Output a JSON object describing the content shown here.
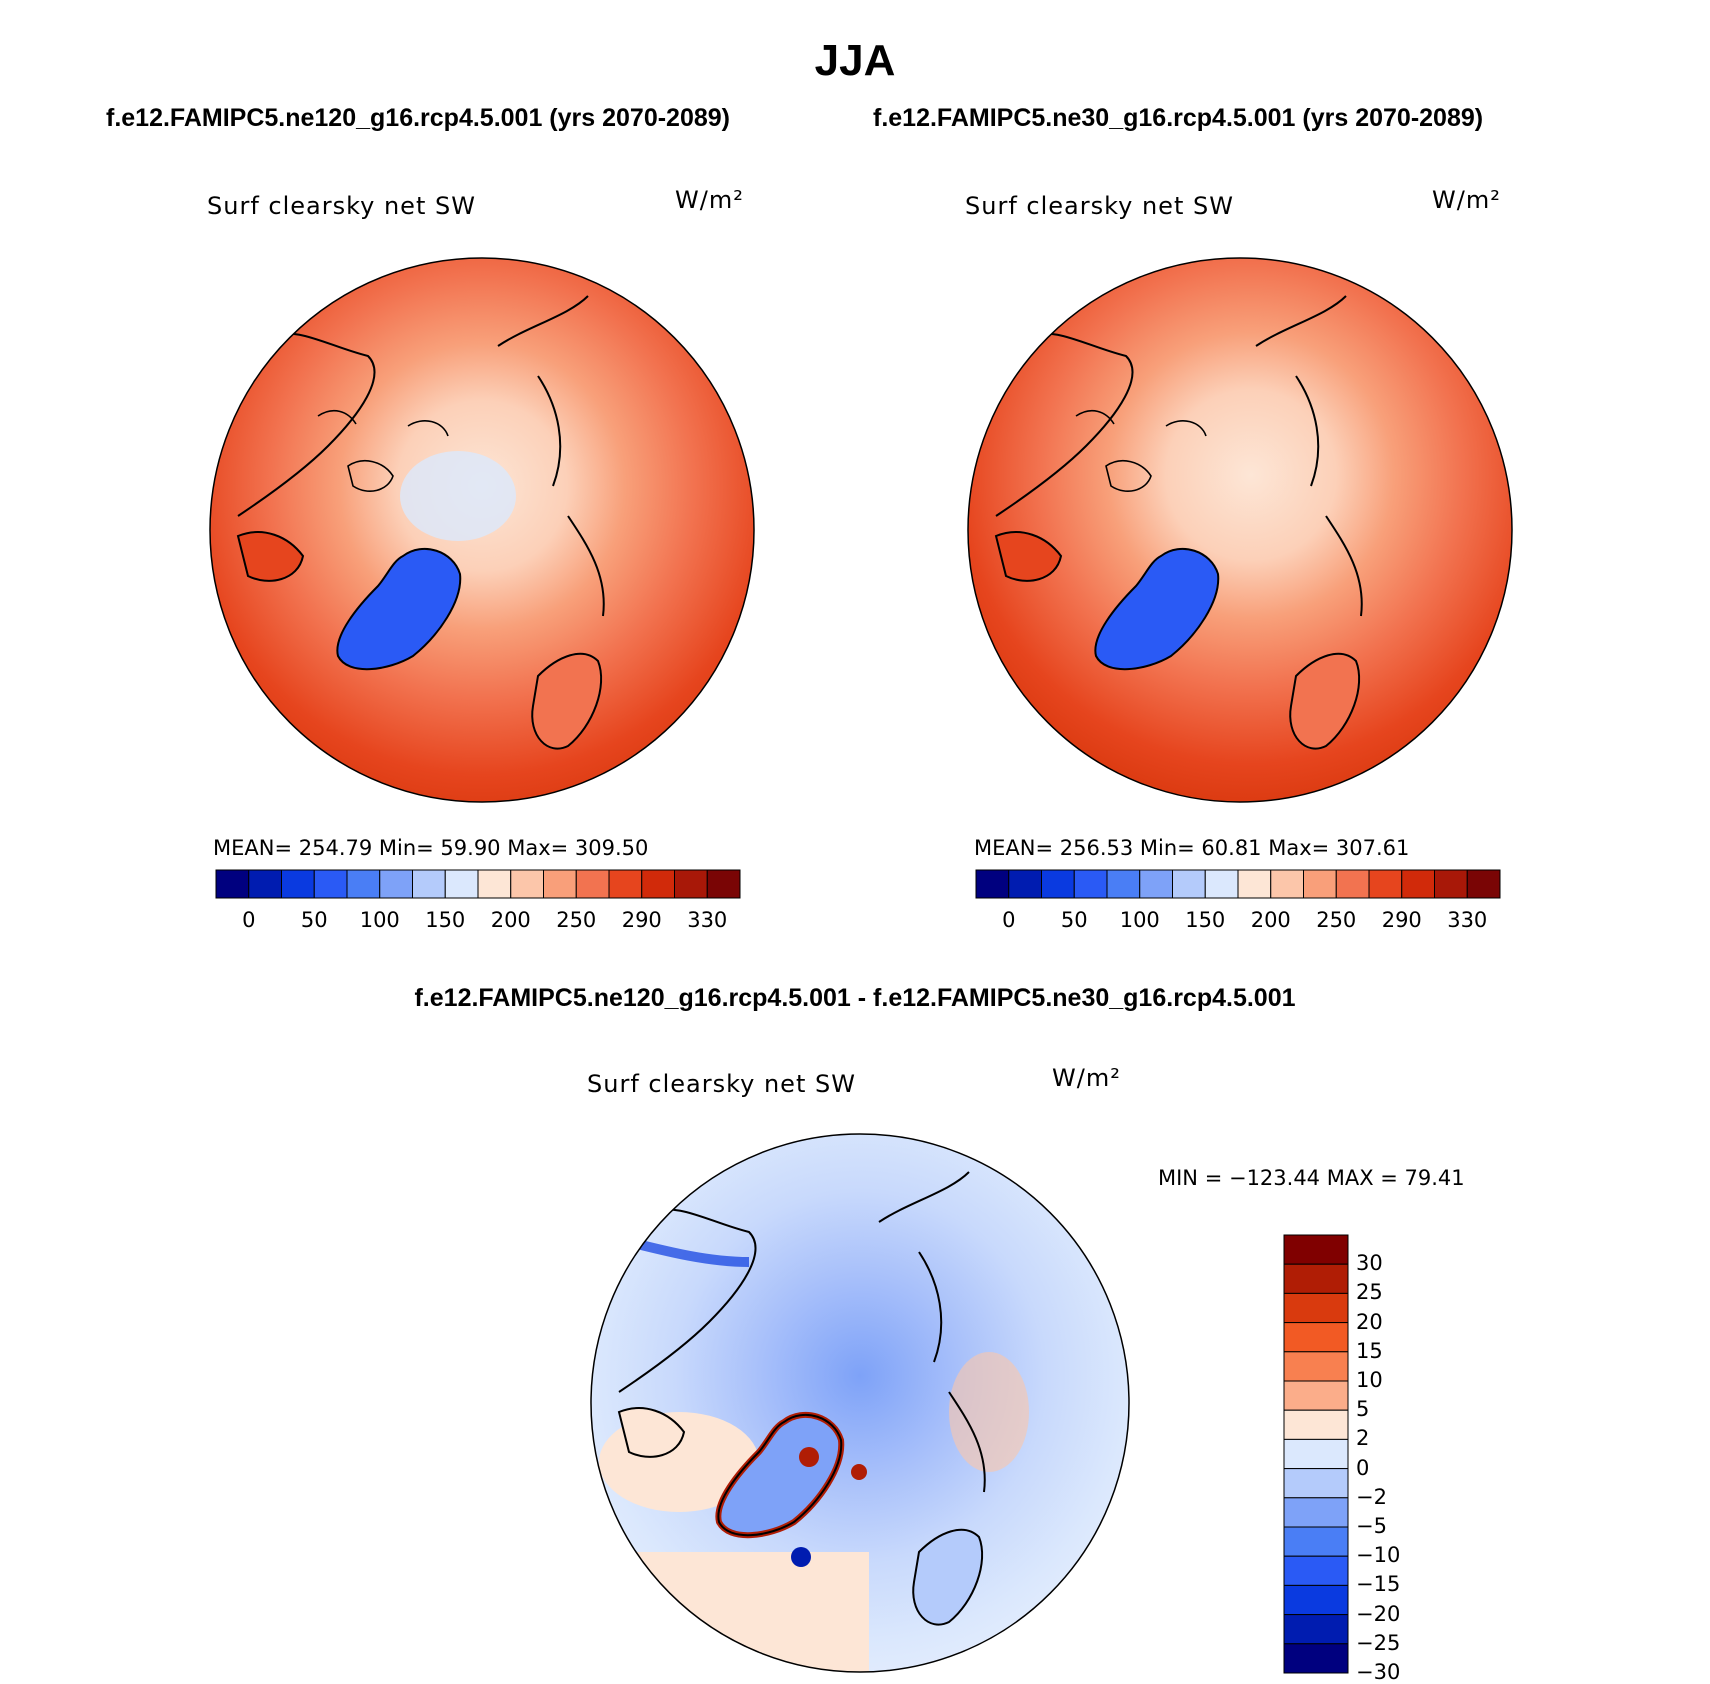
{
  "title": "JJA",
  "panels": [
    {
      "case": "f.e12.FAMIPC5.ne120_g16.rcp4.5.001 (yrs 2070-2089)",
      "variable": "Surf clearsky net SW",
      "units": "W/m²",
      "stats": "MEAN= 254.79   Min=  59.90   Max= 309.50",
      "colorbar": {
        "colors": [
          "#00007f",
          "#001cb0",
          "#0a3ae0",
          "#2a5af5",
          "#4a7ef5",
          "#7ea2f8",
          "#b4cbfb",
          "#dbe8fd",
          "#fde6d6",
          "#fcc6aa",
          "#f99f7a",
          "#f27350",
          "#e6451e",
          "#d12a0a",
          "#a81808",
          "#7a0505"
        ],
        "labels": [
          "0",
          "50",
          "100",
          "150",
          "200",
          "250",
          "290",
          "330"
        ]
      }
    },
    {
      "case": "f.e12.FAMIPC5.ne30_g16.rcp4.5.001 (yrs 2070-2089)",
      "variable": "Surf clearsky net SW",
      "units": "W/m²",
      "stats": "MEAN= 256.53   Min=  60.81   Max= 307.61",
      "colorbar": {
        "colors": [
          "#00007f",
          "#001cb0",
          "#0a3ae0",
          "#2a5af5",
          "#4a7ef5",
          "#7ea2f8",
          "#b4cbfb",
          "#dbe8fd",
          "#fde6d6",
          "#fcc6aa",
          "#f99f7a",
          "#f27350",
          "#e6451e",
          "#d12a0a",
          "#a81808",
          "#7a0505"
        ],
        "labels": [
          "0",
          "50",
          "100",
          "150",
          "200",
          "250",
          "290",
          "330"
        ]
      }
    }
  ],
  "difference": {
    "title": "f.e12.FAMIPC5.ne120_g16.rcp4.5.001 - f.e12.FAMIPC5.ne30_g16.rcp4.5.001",
    "variable": "Surf clearsky net SW",
    "units": "W/m²",
    "stats": "MIN = −123.44  MAX =   79.41",
    "colorbar": {
      "colors": [
        "#800000",
        "#b01d05",
        "#d93a0e",
        "#f25a24",
        "#f88050",
        "#fbad8a",
        "#fde6d6",
        "#dbe8fd",
        "#b4cbfb",
        "#7ea2f8",
        "#4a7ef5",
        "#2a5af5",
        "#0a3ae0",
        "#001cb0",
        "#00007f"
      ],
      "labels": [
        "30",
        "25",
        "20",
        "15",
        "10",
        "5",
        "2",
        "0",
        "−2",
        "−5",
        "−10",
        "−15",
        "−20",
        "−25",
        "−30"
      ]
    }
  }
}
